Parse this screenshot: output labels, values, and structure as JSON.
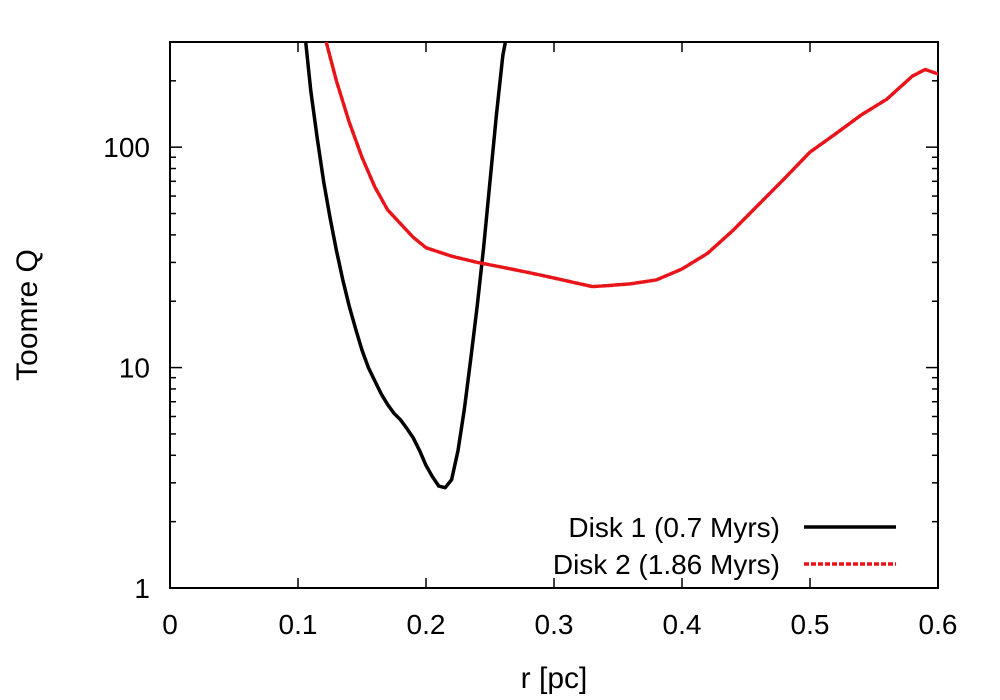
{
  "chart_data": {
    "type": "line",
    "title": "",
    "xlabel": "r [pc]",
    "ylabel": "Toomre Q",
    "xlim": [
      0,
      0.6
    ],
    "ylim": [
      1,
      300
    ],
    "yscale": "log",
    "grid": false,
    "legend_position": "bottom-right",
    "x_ticks": [
      0,
      0.1,
      0.2,
      0.3,
      0.4,
      0.5,
      0.6
    ],
    "x_tick_labels": [
      "0",
      "0.1",
      "0.2",
      "0.3",
      "0.4",
      "0.5",
      "0.6"
    ],
    "y_ticks": [
      1,
      10,
      100
    ],
    "y_tick_labels": [
      "1",
      "10",
      "100"
    ],
    "series": [
      {
        "name": "Disk 1 (0.7 Myrs)",
        "color": "#000000",
        "style": "solid",
        "x": [
          0.106,
          0.11,
          0.115,
          0.12,
          0.125,
          0.13,
          0.135,
          0.14,
          0.145,
          0.15,
          0.155,
          0.16,
          0.165,
          0.17,
          0.175,
          0.18,
          0.185,
          0.19,
          0.195,
          0.2,
          0.205,
          0.21,
          0.215,
          0.22,
          0.225,
          0.23,
          0.235,
          0.24,
          0.245,
          0.25,
          0.255,
          0.26,
          0.262
        ],
        "y": [
          300,
          180,
          110,
          70,
          48,
          34,
          25,
          19,
          15,
          12,
          10,
          8.7,
          7.6,
          6.8,
          6.2,
          5.8,
          5.3,
          4.8,
          4.2,
          3.6,
          3.2,
          2.9,
          2.85,
          3.1,
          4.2,
          6.5,
          11,
          19,
          35,
          70,
          140,
          260,
          300
        ]
      },
      {
        "name": "Disk 2 (1.86 Myrs)",
        "color": "#e8141a",
        "style": "dashed",
        "x": [
          0.122,
          0.13,
          0.14,
          0.15,
          0.16,
          0.17,
          0.18,
          0.19,
          0.2,
          0.22,
          0.24,
          0.26,
          0.28,
          0.3,
          0.32,
          0.33,
          0.34,
          0.36,
          0.38,
          0.4,
          0.42,
          0.44,
          0.46,
          0.48,
          0.5,
          0.52,
          0.54,
          0.56,
          0.58,
          0.59,
          0.6
        ],
        "y": [
          300,
          200,
          130,
          90,
          66,
          52,
          45,
          39,
          35,
          32,
          30,
          28.5,
          27,
          25.5,
          24,
          23.3,
          23.5,
          24,
          25,
          28,
          33,
          42,
          55,
          72,
          95,
          115,
          140,
          165,
          210,
          225,
          215
        ]
      }
    ]
  }
}
